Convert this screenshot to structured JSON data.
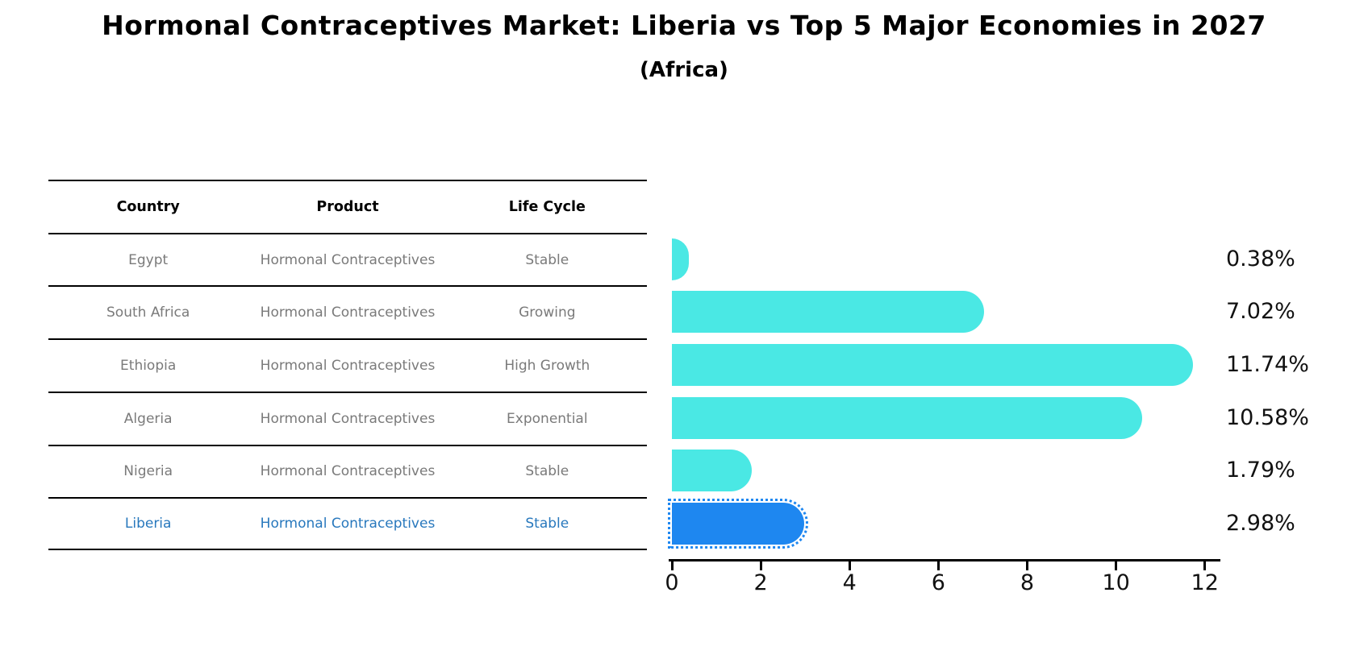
{
  "header": {
    "title": "Hormonal Contraceptives Market: Liberia vs Top 5 Major Economies in 2027",
    "subtitle": "(Africa)"
  },
  "table": {
    "columns": [
      "Country",
      "Product",
      "Life Cycle"
    ],
    "rows": [
      {
        "country": "Egypt",
        "product": "Hormonal Contraceptives",
        "life_cycle": "Stable",
        "highlighted": false
      },
      {
        "country": "South Africa",
        "product": "Hormonal Contraceptives",
        "life_cycle": "Growing",
        "highlighted": false
      },
      {
        "country": "Ethiopia",
        "product": "Hormonal Contraceptives",
        "life_cycle": "High Growth",
        "highlighted": false
      },
      {
        "country": "Algeria",
        "product": "Hormonal Contraceptives",
        "life_cycle": "Exponential",
        "highlighted": false
      },
      {
        "country": "Nigeria",
        "product": "Hormonal Contraceptives",
        "life_cycle": "Stable",
        "highlighted": false
      },
      {
        "country": "Liberia",
        "product": "Hormonal Contraceptives",
        "life_cycle": "Stable",
        "highlighted": true
      }
    ],
    "highlight_text_color": "#2878bd"
  },
  "chart_data": {
    "type": "bar",
    "orientation": "horizontal",
    "title": "Hormonal Contraceptives Market: Liberia vs Top 5 Major Economies in 2027 (Africa)",
    "categories": [
      "Egypt",
      "South Africa",
      "Ethiopia",
      "Algeria",
      "Nigeria",
      "Liberia"
    ],
    "values": [
      0.38,
      7.02,
      11.74,
      10.58,
      1.79,
      2.98
    ],
    "labels": [
      "0.38%",
      "7.02%",
      "11.74%",
      "10.58%",
      "1.79%",
      "2.98%"
    ],
    "x_ticks": [
      0,
      2,
      4,
      6,
      8,
      10,
      12
    ],
    "xlim": [
      0,
      12.4
    ],
    "xlabel": "",
    "ylabel": "",
    "grid": false,
    "legend": false,
    "bar_color": "#4AE8E4",
    "highlight_color": "#1E87F0",
    "highlight_index": 5,
    "axis_color": "#000000"
  }
}
